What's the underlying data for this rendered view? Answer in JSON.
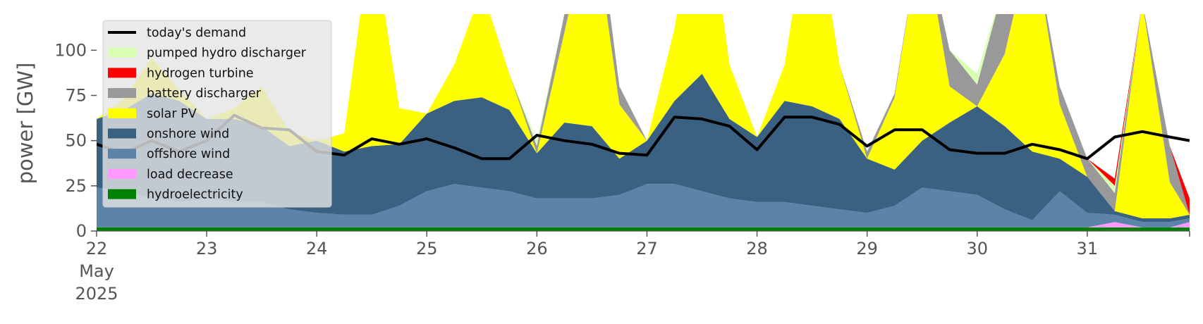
{
  "chart_data": {
    "type": "area",
    "title": "",
    "xlabel": "",
    "ylabel": "power [GW]",
    "xlim": [
      0,
      9.93
    ],
    "ylim": [
      0,
      120
    ],
    "grid": false,
    "legend_placement": "top-left",
    "x_ticks": [
      {
        "x": 0,
        "label": "22",
        "sub": [
          "May",
          "2025"
        ]
      },
      {
        "x": 1,
        "label": "23"
      },
      {
        "x": 2,
        "label": "24"
      },
      {
        "x": 3,
        "label": "25"
      },
      {
        "x": 4,
        "label": "26"
      },
      {
        "x": 5,
        "label": "27"
      },
      {
        "x": 6,
        "label": "28"
      },
      {
        "x": 7,
        "label": "29"
      },
      {
        "x": 8,
        "label": "30"
      },
      {
        "x": 9,
        "label": "31"
      }
    ],
    "y_ticks": [
      0,
      25,
      50,
      75,
      100
    ],
    "x": [
      0,
      0.25,
      0.5,
      0.75,
      1,
      1.25,
      1.5,
      1.75,
      2,
      2.25,
      2.5,
      2.75,
      3,
      3.25,
      3.5,
      3.75,
      4,
      4.25,
      4.5,
      4.75,
      5,
      5.25,
      5.5,
      5.75,
      6,
      6.25,
      6.5,
      6.75,
      7,
      7.25,
      7.5,
      7.75,
      8,
      8.25,
      8.5,
      8.75,
      9,
      9.25,
      9.5,
      9.75,
      9.93
    ],
    "series": [
      {
        "name": "hydroelectricity",
        "color": "#008000",
        "values": [
          2,
          2,
          2,
          2,
          2,
          2,
          2,
          2,
          2,
          2,
          2,
          2,
          2,
          2,
          2,
          2,
          2,
          2,
          2,
          2,
          2,
          2,
          2,
          2,
          2,
          2,
          2,
          2,
          2,
          2,
          2,
          2,
          2,
          2,
          2,
          2,
          2,
          2,
          2,
          2,
          2
        ]
      },
      {
        "name": "load decrease",
        "color": "#ff99ff",
        "values": [
          0,
          0,
          0,
          0,
          0,
          0,
          0,
          0,
          0,
          0,
          0,
          0,
          0,
          0,
          0,
          0,
          0,
          0,
          0,
          0,
          0,
          0,
          0,
          0,
          0,
          0,
          0,
          0,
          0,
          0,
          0,
          0,
          0,
          0,
          0,
          0,
          0,
          3,
          0,
          0,
          3
        ]
      },
      {
        "name": "offshore wind",
        "color": "#5b84a8",
        "values": [
          22,
          20,
          16,
          14,
          16,
          14,
          14,
          10,
          8,
          7,
          7,
          12,
          20,
          24,
          22,
          20,
          16,
          16,
          16,
          18,
          24,
          24,
          20,
          16,
          14,
          14,
          12,
          10,
          8,
          12,
          22,
          20,
          18,
          10,
          4,
          20,
          8,
          4,
          3,
          3,
          2
        ]
      },
      {
        "name": "onshore wind",
        "color": "#3b6182",
        "values": [
          38,
          45,
          58,
          56,
          44,
          46,
          42,
          35,
          40,
          35,
          38,
          34,
          43,
          46,
          50,
          45,
          25,
          42,
          40,
          20,
          24,
          46,
          65,
          44,
          36,
          56,
          55,
          50,
          30,
          20,
          26,
          38,
          49,
          46,
          38,
          18,
          20,
          2,
          2,
          2,
          2
        ]
      },
      {
        "name": "solar PV",
        "color": "#ffff00",
        "values": [
          0,
          6,
          20,
          6,
          0,
          6,
          22,
          8,
          0,
          10,
          120,
          20,
          0,
          20,
          60,
          20,
          0,
          50,
          120,
          30,
          0,
          40,
          120,
          30,
          0,
          20,
          120,
          30,
          0,
          40,
          120,
          20,
          0,
          40,
          120,
          30,
          0,
          0,
          120,
          20,
          0
        ]
      },
      {
        "name": "battery discharger",
        "color": "#999999",
        "values": [
          0,
          0,
          0,
          0,
          0,
          0,
          0,
          0,
          0,
          0,
          0,
          0,
          0,
          0,
          0,
          0,
          4,
          10,
          20,
          10,
          0,
          0,
          0,
          0,
          0,
          0,
          0,
          0,
          4,
          2,
          0,
          20,
          12,
          40,
          0,
          10,
          10,
          10,
          0,
          20,
          0
        ]
      },
      {
        "name": "pumped hydro discharger",
        "color": "#d9ffb3",
        "values": [
          0,
          0,
          0,
          0,
          0,
          0,
          0,
          0,
          0,
          0,
          0,
          0,
          0,
          0,
          0,
          0,
          3,
          0,
          0,
          0,
          0,
          0,
          0,
          0,
          0,
          0,
          0,
          0,
          0,
          0,
          0,
          0,
          6,
          0,
          0,
          0,
          0,
          4,
          0,
          0,
          0
        ]
      },
      {
        "name": "hydrogen turbine",
        "color": "#ff0000",
        "values": [
          0,
          0,
          0,
          0,
          0,
          0,
          0,
          0,
          0,
          0,
          0,
          0,
          0,
          0,
          0,
          0,
          0,
          0,
          0,
          0,
          0,
          0,
          0,
          0,
          0,
          0,
          0,
          0,
          0,
          0,
          0,
          0,
          0,
          0,
          0,
          0,
          0,
          4,
          0,
          0,
          9
        ]
      }
    ],
    "demand": {
      "name": "today's demand",
      "color": "#000000",
      "values": [
        48,
        43,
        50,
        44,
        50,
        64,
        57,
        56,
        44,
        42,
        51,
        48,
        51,
        46,
        40,
        40,
        53,
        50,
        48,
        43,
        42,
        63,
        62,
        58,
        45,
        63,
        63,
        59,
        47,
        56,
        56,
        45,
        43,
        43,
        48,
        45,
        40,
        52,
        55,
        52,
        50
      ]
    },
    "legend": [
      "today's demand",
      "pumped hydro discharger",
      "hydrogen turbine",
      "battery discharger",
      "solar PV",
      "onshore wind",
      "offshore wind",
      "load decrease",
      "hydroelectricity"
    ]
  }
}
